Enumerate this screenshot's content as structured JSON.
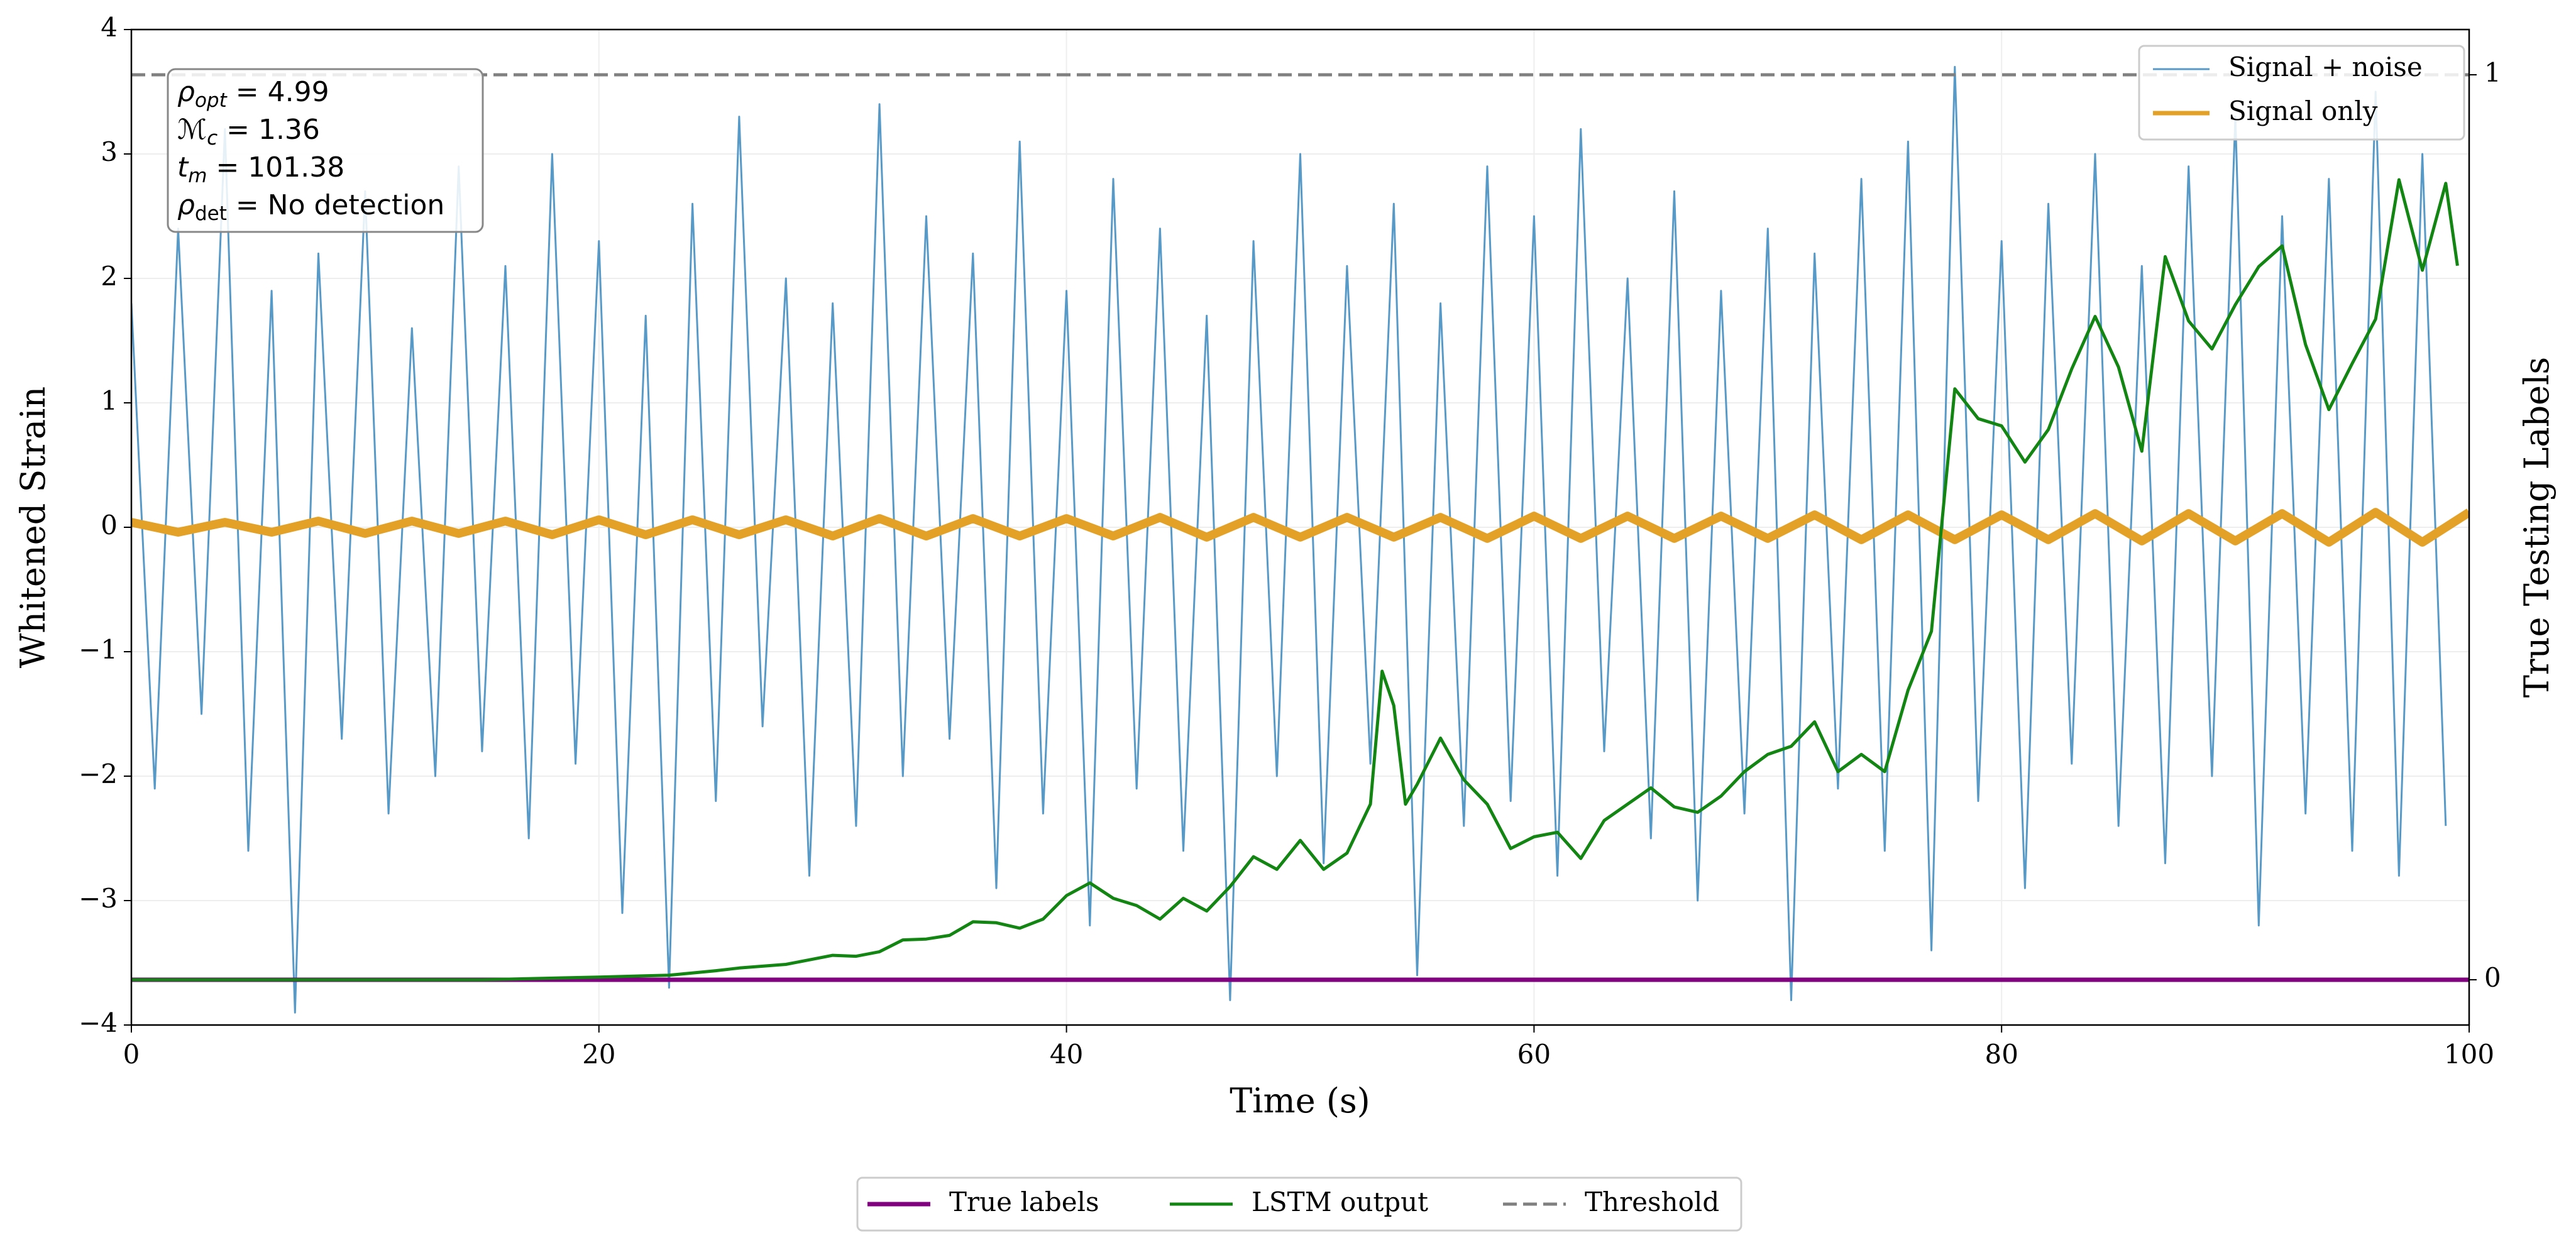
{
  "chart_data": {
    "type": "line",
    "xlabel": "Time (s)",
    "ylabel": "Whitened Strain",
    "y2label": "True Testing Labels",
    "xlim": [
      0,
      100
    ],
    "xticks": [
      0,
      20,
      40,
      60,
      80,
      100
    ],
    "ylim": [
      -4,
      4
    ],
    "yticks": [
      {
        "value": -4,
        "label": "−4"
      },
      {
        "value": -3,
        "label": "−3"
      },
      {
        "value": -2,
        "label": "−2"
      },
      {
        "value": -1,
        "label": "−1"
      },
      0,
      1,
      2,
      3,
      4
    ],
    "y2lim": [
      -0.05,
      1.05
    ],
    "y2ticks": [
      0,
      1
    ],
    "grid": true,
    "annotations": [
      {
        "main": "ρ",
        "sub": "opt",
        "rest": " = 4.99"
      },
      {
        "main": "ℳ",
        "sub": "c",
        "rest": " = 1.36"
      },
      {
        "main": "t",
        "sub": "m",
        "rest": " = 101.38"
      },
      {
        "main": "ρ",
        "sub": "det",
        "rest": " = No detection"
      }
    ],
    "series": [
      {
        "name": "Signal + noise",
        "color": "#5799c7",
        "legend": "upper right",
        "width": 3,
        "x": [
          0,
          1,
          2,
          3,
          4,
          5,
          6,
          7,
          8,
          9,
          10,
          11,
          12,
          13,
          14,
          15,
          16,
          17,
          18,
          19,
          20,
          21,
          22,
          23,
          24,
          25,
          26,
          27,
          28,
          29,
          30,
          31,
          32,
          33,
          34,
          35,
          36,
          37,
          38,
          39,
          40,
          41,
          42,
          43,
          44,
          45,
          46,
          47,
          48,
          49,
          50,
          51,
          52,
          53,
          54,
          55,
          56,
          57,
          58,
          59,
          60,
          61,
          62,
          63,
          64,
          65,
          66,
          67,
          68,
          69,
          70,
          71,
          72,
          73,
          74,
          75,
          76,
          77,
          78,
          79,
          80,
          81,
          82,
          83,
          84,
          85,
          86,
          87,
          88,
          89,
          90,
          91,
          92,
          93,
          94,
          95,
          96,
          97,
          98,
          99
        ],
        "values": [
          1.8,
          -2.1,
          2.4,
          -1.5,
          3.2,
          -2.6,
          1.9,
          -3.9,
          2.2,
          -1.7,
          2.7,
          -2.3,
          1.6,
          -2.0,
          2.9,
          -1.8,
          2.1,
          -2.5,
          3.0,
          -1.9,
          2.3,
          -3.1,
          1.7,
          -3.7,
          2.6,
          -2.2,
          3.3,
          -1.6,
          2.0,
          -2.8,
          1.8,
          -2.4,
          3.4,
          -2.0,
          2.5,
          -1.7,
          2.2,
          -2.9,
          3.1,
          -2.3,
          1.9,
          -3.2,
          2.8,
          -2.1,
          2.4,
          -2.6,
          1.7,
          -3.8,
          2.3,
          -2.0,
          3.0,
          -2.7,
          2.1,
          -1.9,
          2.6,
          -3.6,
          1.8,
          -2.4,
          2.9,
          -2.2,
          2.5,
          -2.8,
          3.2,
          -1.8,
          2.0,
          -2.5,
          2.7,
          -3.0,
          1.9,
          -2.3,
          2.4,
          -3.8,
          2.2,
          -2.1,
          2.8,
          -2.6,
          3.1,
          -3.4,
          3.7,
          -2.2,
          2.3,
          -2.9,
          2.6,
          -1.9,
          3.0,
          -2.4,
          2.1,
          -2.7,
          2.9,
          -2.0,
          3.3,
          -3.2,
          2.5,
          -2.3,
          2.8,
          -2.6,
          3.5,
          -2.8,
          3.0,
          -2.4
        ]
      },
      {
        "name": "Signal only",
        "color": "#e3a227",
        "legend": "upper right",
        "width": 14,
        "x": [
          0,
          2,
          4,
          6,
          8,
          10,
          12,
          14,
          16,
          18,
          20,
          22,
          24,
          26,
          28,
          30,
          32,
          34,
          36,
          38,
          40,
          42,
          44,
          46,
          48,
          50,
          52,
          54,
          56,
          58,
          60,
          62,
          64,
          66,
          68,
          70,
          72,
          74,
          76,
          78,
          80,
          82,
          84,
          86,
          88,
          90,
          92,
          94,
          96,
          98,
          100
        ],
        "values": [
          0.04,
          -0.04,
          0.04,
          -0.04,
          0.05,
          -0.05,
          0.05,
          -0.05,
          0.05,
          -0.06,
          0.06,
          -0.06,
          0.06,
          -0.06,
          0.06,
          -0.07,
          0.07,
          -0.07,
          0.07,
          -0.07,
          0.07,
          -0.07,
          0.08,
          -0.08,
          0.08,
          -0.08,
          0.08,
          -0.08,
          0.08,
          -0.09,
          0.09,
          -0.09,
          0.09,
          -0.09,
          0.09,
          -0.09,
          0.1,
          -0.1,
          0.1,
          -0.1,
          0.1,
          -0.1,
          0.11,
          -0.11,
          0.11,
          -0.11,
          0.11,
          -0.12,
          0.12,
          -0.12,
          0.12
        ]
      },
      {
        "name": "True labels",
        "color": "#800080",
        "legend": "lower center",
        "axis": "y2",
        "width": 7,
        "x": [
          0,
          100
        ],
        "values": [
          0,
          0
        ]
      },
      {
        "name": "LSTM output",
        "color": "#128512",
        "legend": "lower center",
        "axis": "y2",
        "width": 5,
        "x": [
          0,
          5,
          10,
          15,
          20,
          23,
          25,
          26,
          28,
          29,
          30,
          31,
          32,
          33,
          34,
          35,
          36,
          37,
          38,
          39,
          40,
          41,
          42,
          43,
          44,
          45,
          46,
          47,
          48,
          49,
          50,
          51,
          52,
          53,
          53.5,
          54,
          54.5,
          55,
          56,
          57,
          58,
          59,
          60,
          61,
          62,
          63,
          64,
          65,
          66,
          67,
          68,
          69,
          70,
          71,
          72,
          73,
          74,
          75,
          76,
          77,
          78,
          79,
          80,
          81,
          82,
          83,
          84,
          85,
          86,
          87,
          88,
          89,
          90,
          91,
          92,
          93,
          94,
          95,
          96,
          97,
          98,
          99,
          99.5
        ],
        "values": [
          0,
          0,
          0,
          0,
          0.003,
          0.005,
          0.01,
          0.013,
          0.017,
          0.022,
          0.027,
          0.026,
          0.031,
          0.044,
          0.045,
          0.049,
          0.064,
          0.063,
          0.057,
          0.067,
          0.093,
          0.107,
          0.09,
          0.082,
          0.067,
          0.09,
          0.076,
          0.103,
          0.136,
          0.122,
          0.154,
          0.122,
          0.14,
          0.194,
          0.341,
          0.303,
          0.194,
          0.216,
          0.267,
          0.221,
          0.194,
          0.145,
          0.158,
          0.163,
          0.134,
          0.176,
          0.194,
          0.212,
          0.191,
          0.185,
          0.203,
          0.23,
          0.249,
          0.258,
          0.285,
          0.23,
          0.249,
          0.23,
          0.32,
          0.385,
          0.653,
          0.62,
          0.612,
          0.572,
          0.608,
          0.675,
          0.733,
          0.677,
          0.584,
          0.799,
          0.728,
          0.697,
          0.746,
          0.788,
          0.811,
          0.702,
          0.63,
          0.681,
          0.73,
          0.884,
          0.784,
          0.88,
          0.789
        ]
      },
      {
        "name": "Threshold",
        "color": "#808080",
        "legend": "lower center",
        "axis": "y2",
        "width": 5,
        "dash": true,
        "x": [
          0,
          100
        ],
        "values": [
          1,
          1
        ]
      }
    ]
  }
}
